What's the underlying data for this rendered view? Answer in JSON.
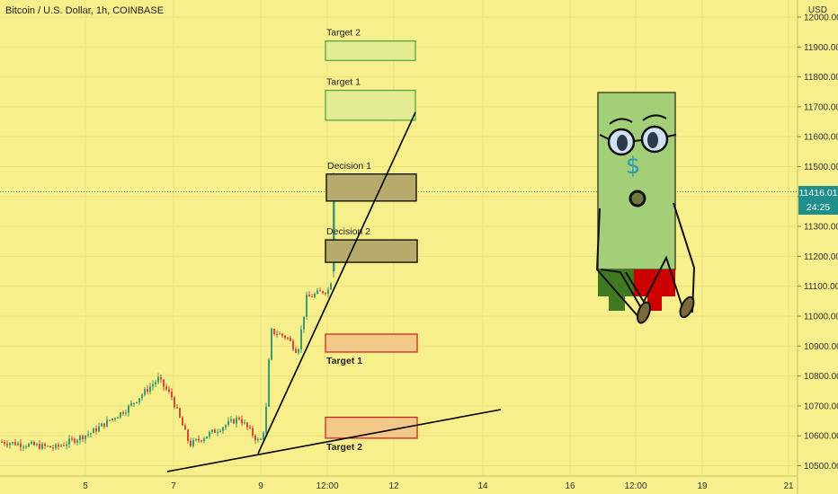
{
  "header": {
    "title": "Bitcoin / U.S. Dollar, 1h, COINBASE",
    "currency": "USD"
  },
  "price_badge": {
    "price": "11416.01",
    "countdown": "24:25"
  },
  "colors": {
    "background": "#f7ee8c",
    "candle_up": "#3a9a72",
    "candle_down": "#d14a3b",
    "line": "#000000"
  },
  "chart_data": {
    "type": "candlestick",
    "y_ticks": [
      "10500.00",
      "10600.00",
      "10700.00",
      "10800.00",
      "10900.00",
      "11000.00",
      "11100.00",
      "11200.00",
      "11300.00",
      "11400.00",
      "11500.00",
      "11600.00",
      "11700.00",
      "11800.00",
      "11900.00",
      "12000.00"
    ],
    "ylim": [
      10480,
      12030
    ],
    "x_ticks": [
      "5",
      "7",
      "9",
      "12:00",
      "12",
      "14",
      "16",
      "12:00",
      "19",
      "21"
    ],
    "current_price": 11416.01,
    "zones": [
      {
        "label": "Target 2",
        "kind": "upper",
        "low": 11855,
        "high": 11920
      },
      {
        "label": "Target 1",
        "kind": "upper",
        "low": 11655,
        "high": 11755
      },
      {
        "label": "Decision 1",
        "kind": "decision",
        "low": 11385,
        "high": 11475
      },
      {
        "label": "Decision 2",
        "kind": "decision",
        "low": 11180,
        "high": 11255
      },
      {
        "label": "Target 1",
        "kind": "lower",
        "low": 10880,
        "high": 10940
      },
      {
        "label": "Target 2",
        "kind": "lower",
        "low": 10592,
        "high": 10662
      }
    ]
  }
}
